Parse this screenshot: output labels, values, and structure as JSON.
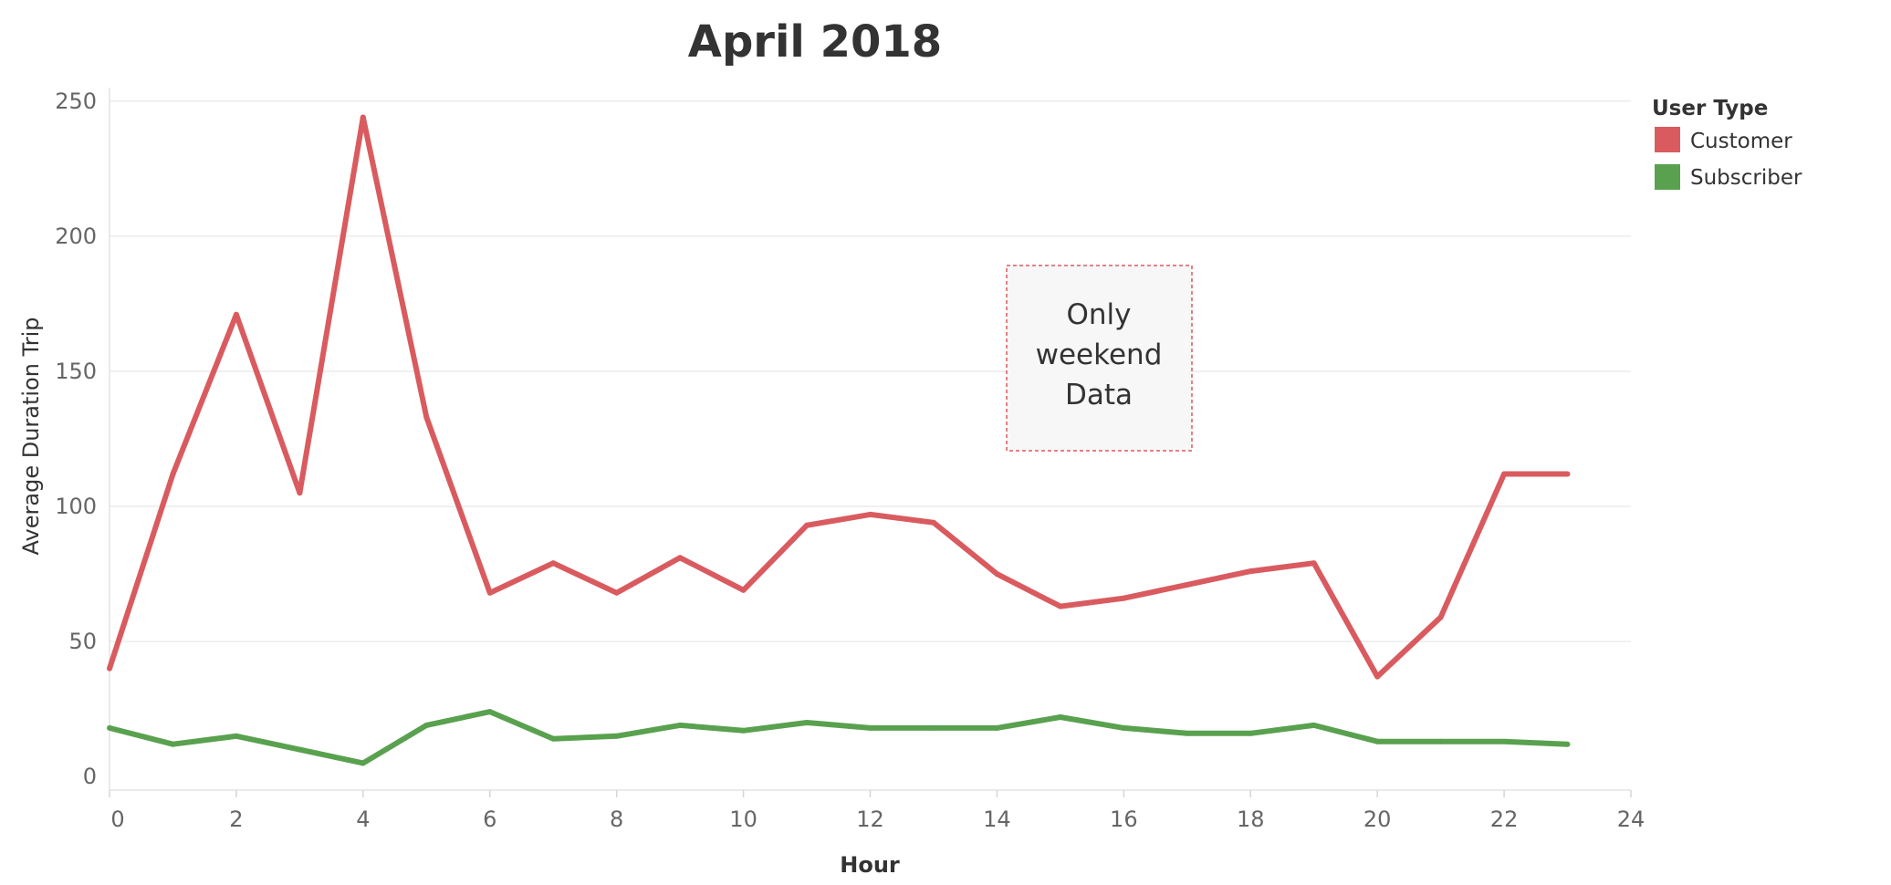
{
  "chart_data": {
    "type": "line",
    "title": "April 2018",
    "xlabel": "Hour",
    "ylabel": "Average Duration Trip",
    "xlim": [
      0,
      24
    ],
    "ylim": [
      -5,
      255
    ],
    "x_ticks": [
      0,
      2,
      4,
      6,
      8,
      10,
      12,
      14,
      16,
      18,
      20,
      22,
      24
    ],
    "y_ticks": [
      0,
      50,
      100,
      150,
      200,
      250
    ],
    "grid": true,
    "legend": {
      "title": "User Type",
      "position": "top-right"
    },
    "x": [
      0,
      1,
      2,
      3,
      4,
      5,
      6,
      7,
      8,
      9,
      10,
      11,
      12,
      13,
      14,
      15,
      16,
      17,
      18,
      19,
      20,
      21,
      22,
      23
    ],
    "series": [
      {
        "name": "Customer",
        "color": "#d95b5f",
        "values": [
          40,
          112,
          171,
          105,
          244,
          133,
          68,
          79,
          68,
          81,
          69,
          93,
          97,
          94,
          75,
          63,
          66,
          71,
          76,
          79,
          37,
          59,
          112,
          112
        ]
      },
      {
        "name": "Subscriber",
        "color": "#59a14f",
        "values": [
          18,
          12,
          15,
          10,
          5,
          19,
          24,
          14,
          15,
          19,
          17,
          20,
          18,
          18,
          18,
          22,
          18,
          16,
          16,
          19,
          13,
          13,
          13,
          12
        ]
      }
    ],
    "annotation": {
      "text": [
        "Only",
        "weekend",
        "Data"
      ]
    }
  }
}
